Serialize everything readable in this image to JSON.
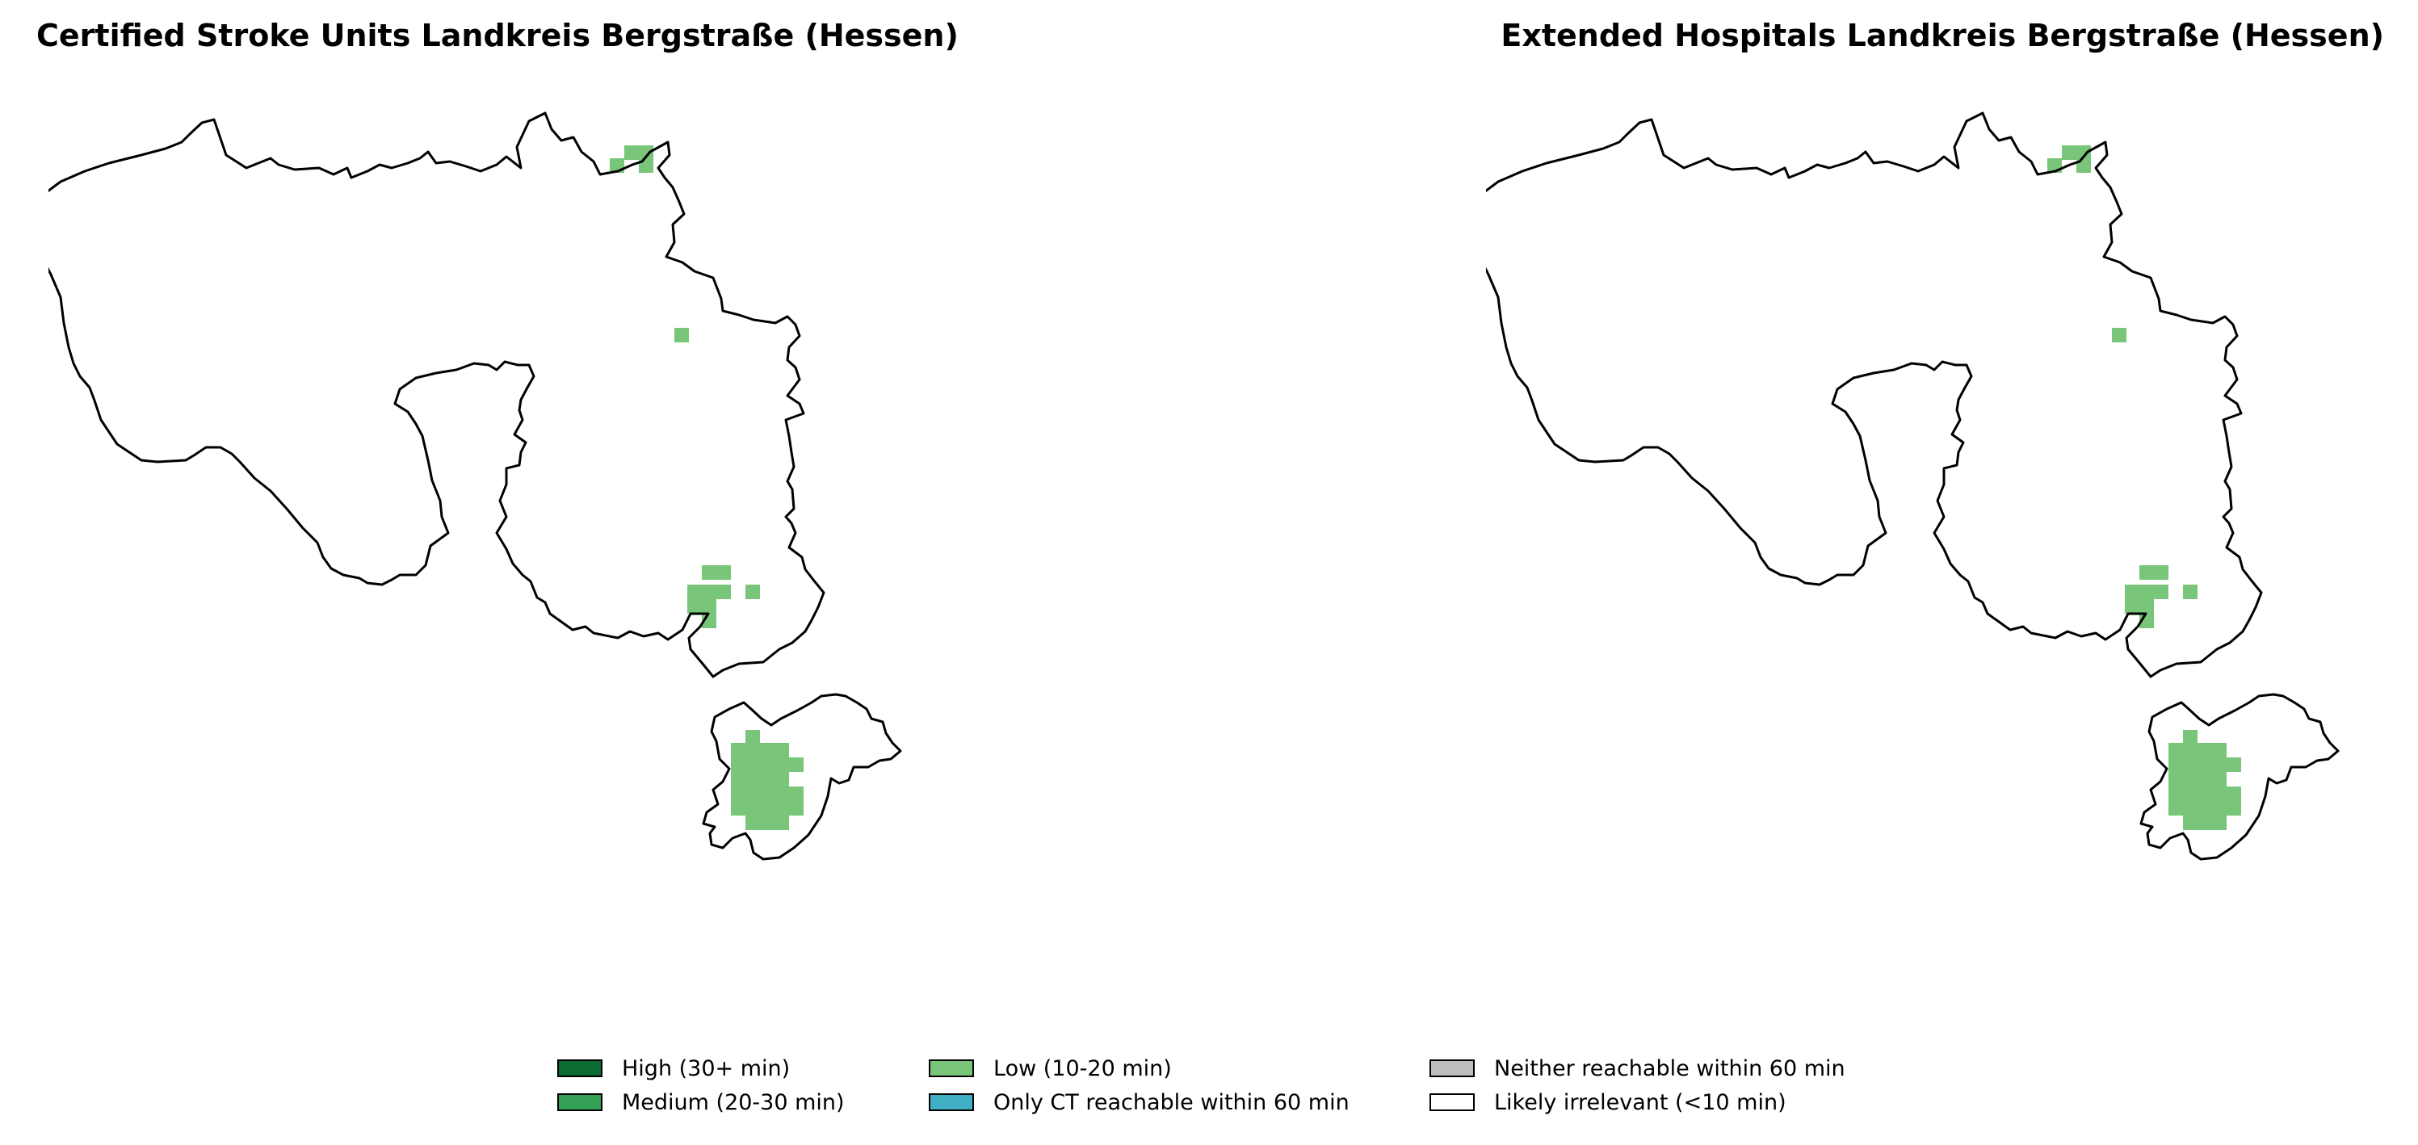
{
  "maps": [
    {
      "title": "Certified Stroke Units Landkreis Bergstraße (Hessen)"
    },
    {
      "title": "Extended Hospitals Landkreis Bergstraße (Hessen)"
    }
  ],
  "legend": {
    "items": [
      {
        "label": "High (30+ min)",
        "color": "#0b6b31"
      },
      {
        "label": "Medium (20-30 min)",
        "color": "#33a055"
      },
      {
        "label": "Low (10-20 min)",
        "color": "#79c67b"
      },
      {
        "label": "Only CT reachable within 60 min",
        "color": "#41b0c4"
      },
      {
        "label": "Neither reachable within 60 min",
        "color": "#bdbdbd"
      },
      {
        "label": "Likely irrelevant (<10 min)",
        "color": "#ffffff"
      }
    ]
  },
  "colors": {
    "outline": "#000000",
    "low": "#79c67b"
  }
}
